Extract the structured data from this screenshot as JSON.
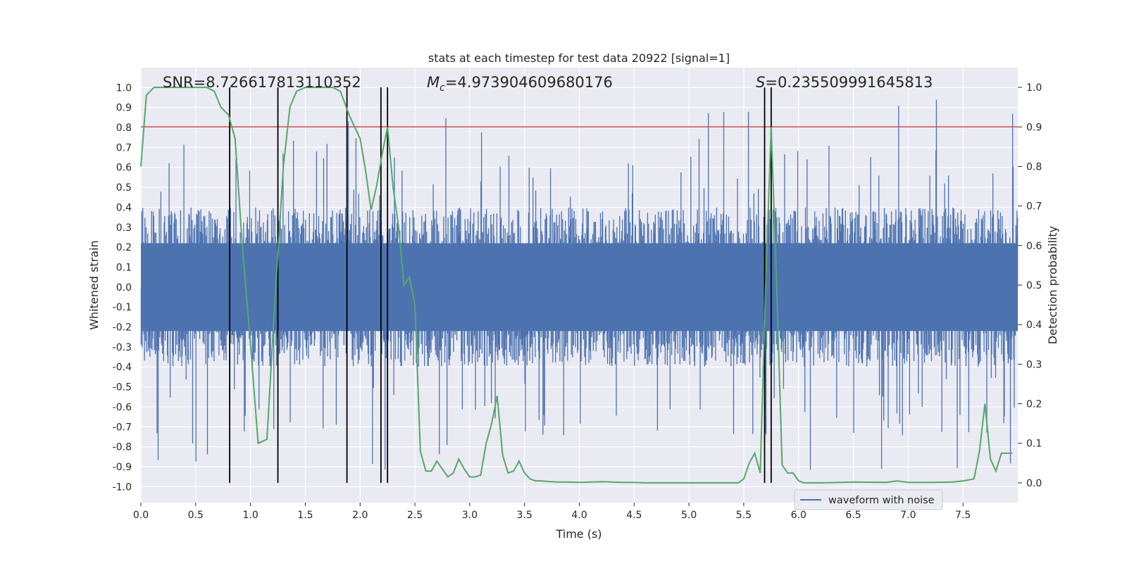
{
  "chart_data": {
    "type": "line",
    "title": "stats at each timestep for test data 20922 [signal=1]",
    "xlabel": "Time (s)",
    "ylabel_left": "Whitened strain",
    "ylabel_right": "Detection probability",
    "xlim": [
      0,
      8
    ],
    "ylim_left": [
      -1.08,
      1.1
    ],
    "ylim_right": [
      -0.05,
      1.05
    ],
    "x_ticks": [
      "0.0",
      "0.5",
      "1.0",
      "1.5",
      "2.0",
      "2.5",
      "3.0",
      "3.5",
      "4.0",
      "4.5",
      "5.0",
      "5.5",
      "6.0",
      "6.5",
      "7.0",
      "7.5"
    ],
    "x_tick_values": [
      0,
      0.5,
      1,
      1.5,
      2,
      2.5,
      3,
      3.5,
      4,
      4.5,
      5,
      5.5,
      6,
      6.5,
      7,
      7.5
    ],
    "y_left_ticks": [
      "1.0",
      "0.9",
      "0.8",
      "0.7",
      "0.6",
      "0.5",
      "0.4",
      "0.3",
      "0.2",
      "0.1",
      "0.0",
      "-0.1",
      "-0.2",
      "-0.3",
      "-0.4",
      "-0.5",
      "-0.6",
      "-0.7",
      "-0.8",
      "-0.9",
      "-1.0"
    ],
    "y_left_tick_values": [
      1,
      0.9,
      0.8,
      0.7,
      0.6,
      0.5,
      0.4,
      0.3,
      0.2,
      0.1,
      0,
      -0.1,
      -0.2,
      -0.3,
      -0.4,
      -0.5,
      -0.6,
      -0.7,
      -0.8,
      -0.9,
      -1.0
    ],
    "y_right_ticks": [
      "1.0",
      "0.9",
      "0.8",
      "0.7",
      "0.6",
      "0.5",
      "0.4",
      "0.3",
      "0.2",
      "0.1",
      "0.0"
    ],
    "y_right_tick_values": [
      1,
      0.9,
      0.8,
      0.7,
      0.6,
      0.5,
      0.4,
      0.3,
      0.2,
      0.1,
      0
    ],
    "annotations": {
      "snr": "SNR=8.726617813110352",
      "mc_symbol": "M",
      "mc_sub": "c",
      "mc_value": "=4.973904609680176",
      "s_symbol": "S",
      "s_value": "=0.235509991645813"
    },
    "threshold": {
      "value": 0.9,
      "axis": "right",
      "color": "#c44e52"
    },
    "vertical_markers": [
      0.81,
      1.25,
      1.88,
      2.19,
      2.25,
      5.69,
      5.75
    ],
    "series": [
      {
        "name": "waveform with noise",
        "axis": "left",
        "color": "#4c72b0",
        "style": "noise",
        "band_core": 0.22,
        "band_envelope": 0.4
      },
      {
        "name": "detection probability",
        "axis": "right",
        "color": "#55a868",
        "x": [
          0,
          0.05,
          0.12,
          0.2,
          0.3,
          0.45,
          0.6,
          0.67,
          0.73,
          0.8,
          0.86,
          0.92,
          1.0,
          1.07,
          1.15,
          1.22,
          1.3,
          1.36,
          1.42,
          1.5,
          1.6,
          1.7,
          1.75,
          1.82,
          1.9,
          2.0,
          2.05,
          2.1,
          2.15,
          2.2,
          2.25,
          2.3,
          2.35,
          2.4,
          2.45,
          2.5,
          2.55,
          2.6,
          2.65,
          2.7,
          2.75,
          2.8,
          2.85,
          2.9,
          2.95,
          3.0,
          3.05,
          3.1,
          3.15,
          3.2,
          3.25,
          3.3,
          3.35,
          3.4,
          3.45,
          3.5,
          3.55,
          3.6,
          3.65,
          3.7,
          3.75,
          3.8,
          3.9,
          4.0,
          4.2,
          4.4,
          4.5,
          4.6,
          4.7,
          4.8,
          5.0,
          5.2,
          5.35,
          5.45,
          5.5,
          5.55,
          5.6,
          5.65,
          5.7,
          5.75,
          5.8,
          5.85,
          5.9,
          5.95,
          6.0,
          6.05,
          6.1,
          6.2,
          6.5,
          6.8,
          6.9,
          7.0,
          7.2,
          7.4,
          7.5,
          7.6,
          7.65,
          7.7,
          7.75,
          7.8,
          7.85,
          7.9,
          7.95
        ],
        "values": [
          0.8,
          0.98,
          1.0,
          1.0,
          1.0,
          1.0,
          1.0,
          0.99,
          0.95,
          0.93,
          0.87,
          0.62,
          0.35,
          0.1,
          0.11,
          0.45,
          0.8,
          0.95,
          0.99,
          1.0,
          1.0,
          1.0,
          1.0,
          0.99,
          0.93,
          0.87,
          0.79,
          0.69,
          0.75,
          0.83,
          0.9,
          0.75,
          0.65,
          0.5,
          0.52,
          0.45,
          0.08,
          0.03,
          0.03,
          0.055,
          0.035,
          0.015,
          0.025,
          0.06,
          0.035,
          0.015,
          0.015,
          0.02,
          0.1,
          0.15,
          0.22,
          0.07,
          0.025,
          0.03,
          0.055,
          0.025,
          0.01,
          0.005,
          0.005,
          0.004,
          0.003,
          0.002,
          0.002,
          0.001,
          0.003,
          0.001,
          0.001,
          0.0,
          0.0,
          0.0,
          0.0,
          0.0,
          0.0,
          0.0,
          0.01,
          0.05,
          0.075,
          0.025,
          0.5,
          0.9,
          0.5,
          0.045,
          0.025,
          0.025,
          0.005,
          0.0,
          0.0,
          0.0,
          0.002,
          0.001,
          0.005,
          0.001,
          0.001,
          0.002,
          0.005,
          0.01,
          0.08,
          0.2,
          0.06,
          0.03,
          0.075,
          0.075,
          0.075
        ]
      }
    ],
    "legend": {
      "label": "waveform with noise",
      "placement": "lower-right"
    }
  }
}
